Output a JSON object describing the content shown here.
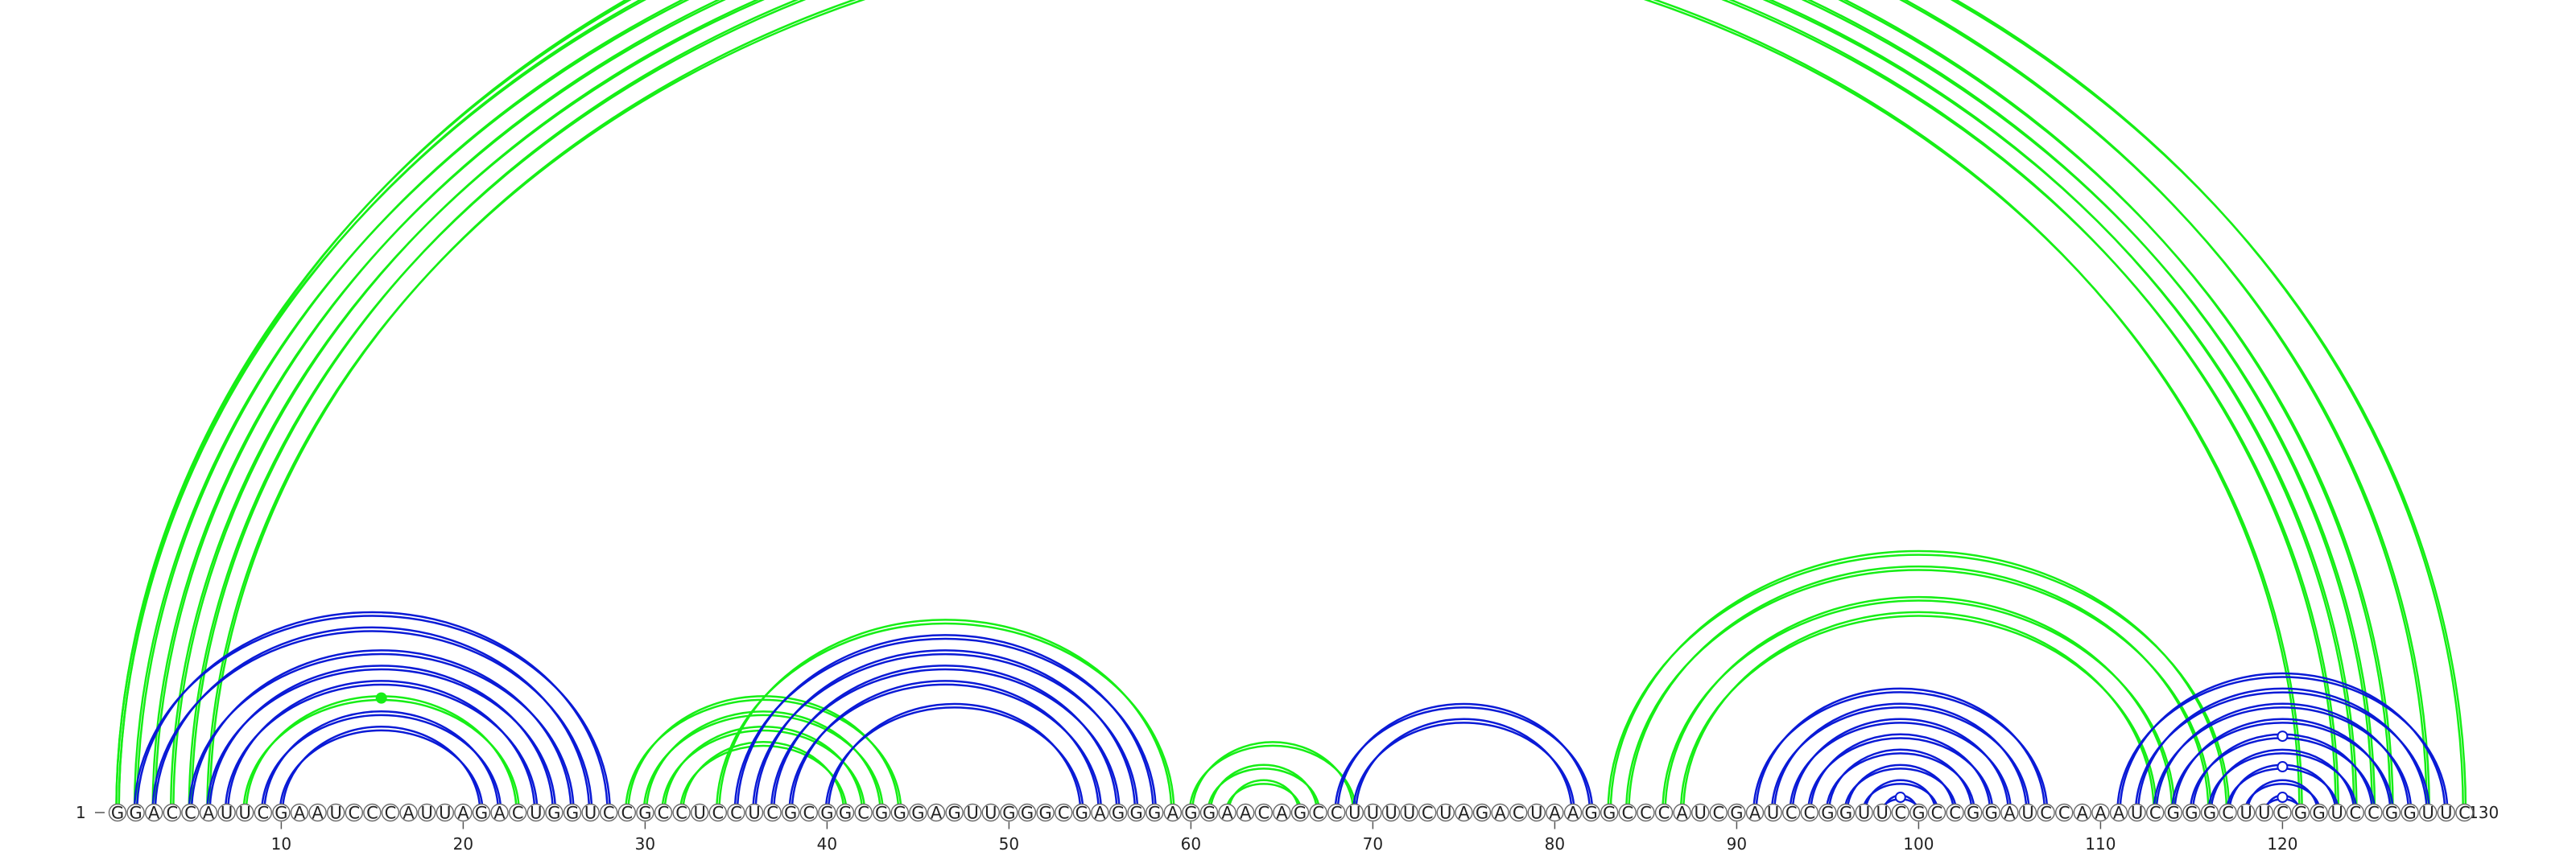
{
  "diagram": {
    "sequence": "GGACCAUUCGAAUCCCAUUAGACUGGUCCGCCUCCUCGCGGCGGGAGUUGGGCGAGGGAGGAACAGCCUUUUCUAGACUAAGGCCCAUCGAUCCGGUUCGCCGGAUCCAAAUCGGGCUUCGGUCCGGUUC",
    "start_label": "1",
    "end_label": "130",
    "ticks": [
      "10",
      "20",
      "30",
      "40",
      "50",
      "60",
      "70",
      "80",
      "90",
      "100",
      "110",
      "120"
    ],
    "colors": {
      "blue": "#0a1ad6",
      "green": "#16ee16"
    },
    "arcs": [
      {
        "i": 1,
        "j": 128,
        "color": "green"
      },
      {
        "i": 2,
        "j": 126,
        "color": "green"
      },
      {
        "i": 3,
        "j": 125,
        "color": "green"
      },
      {
        "i": 4,
        "j": 124,
        "color": "green"
      },
      {
        "i": 5,
        "j": 123,
        "color": "green"
      },
      {
        "i": 6,
        "j": 121,
        "color": "green"
      },
      {
        "i": 2,
        "j": 28,
        "color": "blue"
      },
      {
        "i": 3,
        "j": 27,
        "color": "blue"
      },
      {
        "i": 5,
        "j": 26,
        "color": "blue"
      },
      {
        "i": 6,
        "j": 25,
        "color": "blue"
      },
      {
        "i": 7,
        "j": 24,
        "color": "blue"
      },
      {
        "i": 8,
        "j": 23,
        "color": "green"
      },
      {
        "i": 9,
        "j": 22,
        "color": "blue"
      },
      {
        "i": 10,
        "j": 21,
        "color": "blue"
      },
      {
        "i": 29,
        "j": 44,
        "color": "green"
      },
      {
        "i": 30,
        "j": 43,
        "color": "green"
      },
      {
        "i": 31,
        "j": 42,
        "color": "green"
      },
      {
        "i": 32,
        "j": 41,
        "color": "green"
      },
      {
        "i": 34,
        "j": 59,
        "color": "green"
      },
      {
        "i": 35,
        "j": 58,
        "color": "blue"
      },
      {
        "i": 36,
        "j": 57,
        "color": "blue"
      },
      {
        "i": 37,
        "j": 56,
        "color": "blue"
      },
      {
        "i": 38,
        "j": 55,
        "color": "blue"
      },
      {
        "i": 40,
        "j": 54,
        "color": "blue"
      },
      {
        "i": 60,
        "j": 69,
        "color": "green"
      },
      {
        "i": 61,
        "j": 67,
        "color": "green"
      },
      {
        "i": 62,
        "j": 66,
        "color": "green"
      },
      {
        "i": 68,
        "j": 82,
        "color": "blue"
      },
      {
        "i": 69,
        "j": 81,
        "color": "blue"
      },
      {
        "i": 83,
        "j": 117,
        "color": "green"
      },
      {
        "i": 84,
        "j": 116,
        "color": "green"
      },
      {
        "i": 86,
        "j": 114,
        "color": "green"
      },
      {
        "i": 87,
        "j": 113,
        "color": "green"
      },
      {
        "i": 91,
        "j": 107,
        "color": "blue"
      },
      {
        "i": 92,
        "j": 106,
        "color": "blue"
      },
      {
        "i": 93,
        "j": 105,
        "color": "blue"
      },
      {
        "i": 94,
        "j": 104,
        "color": "blue"
      },
      {
        "i": 95,
        "j": 103,
        "color": "blue"
      },
      {
        "i": 96,
        "j": 102,
        "color": "blue"
      },
      {
        "i": 97,
        "j": 101,
        "color": "blue"
      },
      {
        "i": 98,
        "j": 100,
        "color": "blue"
      },
      {
        "i": 111,
        "j": 129,
        "color": "blue"
      },
      {
        "i": 112,
        "j": 128,
        "color": "blue"
      },
      {
        "i": 113,
        "j": 127,
        "color": "blue"
      },
      {
        "i": 114,
        "j": 126,
        "color": "blue"
      },
      {
        "i": 115,
        "j": 125,
        "color": "blue"
      },
      {
        "i": 116,
        "j": 124,
        "color": "blue"
      },
      {
        "i": 117,
        "j": 123,
        "color": "blue"
      },
      {
        "i": 118,
        "j": 122,
        "color": "blue"
      },
      {
        "i": 119,
        "j": 121,
        "color": "blue"
      },
      {
        "i": 1,
        "j": 130,
        "color": "green"
      }
    ],
    "markers": [
      {
        "i": 1,
        "j": 130,
        "color": "green",
        "filled": false
      },
      {
        "i": 8,
        "j": 23,
        "color": "green",
        "filled": true
      },
      {
        "i": 119,
        "j": 121,
        "color": "blue",
        "filled": false
      },
      {
        "i": 117,
        "j": 123,
        "color": "blue",
        "filled": false
      },
      {
        "i": 115,
        "j": 125,
        "color": "blue",
        "filled": false
      },
      {
        "i": 98,
        "j": 100,
        "color": "blue",
        "filled": false
      }
    ]
  }
}
